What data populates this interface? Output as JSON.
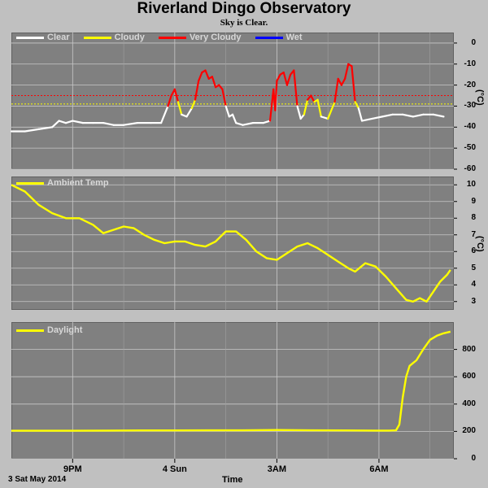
{
  "header": {
    "title": "Riverland Dingo Observatory",
    "subtitle": "Sky is Clear."
  },
  "footer": {
    "date": "3 Sat May 2014",
    "xlabel": "Time"
  },
  "colors": {
    "clear": "#ffffff",
    "cloudy": "#ffff00",
    "very_cloudy": "#ff0000",
    "wet": "#0000ff",
    "threshold_cloudy": "#ffff00",
    "threshold_very_cloudy": "#ff0000",
    "temp": "#ffff00",
    "daylight": "#ffff00"
  },
  "chart_data": [
    {
      "type": "line",
      "name": "sky",
      "unit": "(°C)",
      "ylim": [
        -60,
        5
      ],
      "yticks": [
        0,
        -10,
        -20,
        -30,
        -40,
        -50,
        -60
      ],
      "legend": [
        "Clear",
        "Cloudy",
        "Very Cloudy",
        "Wet"
      ],
      "thresholds": {
        "very_cloudy": -25,
        "cloudy": -29
      },
      "x_start": 19.2,
      "x_end": 7.9,
      "points": [
        [
          19.2,
          -42
        ],
        [
          19.6,
          -42
        ],
        [
          20.0,
          -41
        ],
        [
          20.4,
          -40
        ],
        [
          20.6,
          -37
        ],
        [
          20.8,
          -38
        ],
        [
          21.0,
          -37
        ],
        [
          21.3,
          -38
        ],
        [
          21.6,
          -38
        ],
        [
          21.9,
          -38
        ],
        [
          22.2,
          -39
        ],
        [
          22.5,
          -39
        ],
        [
          22.9,
          -38
        ],
        [
          23.3,
          -38
        ],
        [
          23.6,
          -38
        ],
        [
          23.8,
          -30
        ],
        [
          23.9,
          -25
        ],
        [
          24.0,
          -22
        ],
        [
          24.1,
          -28
        ],
        [
          24.2,
          -34
        ],
        [
          24.35,
          -35
        ],
        [
          24.5,
          -31
        ],
        [
          24.6,
          -27
        ],
        [
          24.7,
          -18
        ],
        [
          24.8,
          -14
        ],
        [
          24.9,
          -13
        ],
        [
          25.0,
          -17
        ],
        [
          25.1,
          -16
        ],
        [
          25.2,
          -21
        ],
        [
          25.3,
          -20
        ],
        [
          25.4,
          -22
        ],
        [
          25.5,
          -30
        ],
        [
          25.6,
          -35
        ],
        [
          25.7,
          -34
        ],
        [
          25.8,
          -38
        ],
        [
          26.0,
          -39
        ],
        [
          26.3,
          -38
        ],
        [
          26.6,
          -38
        ],
        [
          26.8,
          -37
        ],
        [
          26.9,
          -22
        ],
        [
          26.95,
          -32
        ],
        [
          27.0,
          -18
        ],
        [
          27.1,
          -15
        ],
        [
          27.2,
          -14
        ],
        [
          27.3,
          -20
        ],
        [
          27.4,
          -15
        ],
        [
          27.5,
          -13
        ],
        [
          27.6,
          -30
        ],
        [
          27.7,
          -36
        ],
        [
          27.8,
          -34
        ],
        [
          27.9,
          -27
        ],
        [
          28.0,
          -25
        ],
        [
          28.1,
          -28
        ],
        [
          28.2,
          -27
        ],
        [
          28.3,
          -35
        ],
        [
          28.5,
          -36
        ],
        [
          28.7,
          -28
        ],
        [
          28.8,
          -17
        ],
        [
          28.9,
          -20
        ],
        [
          29.0,
          -17
        ],
        [
          29.1,
          -10
        ],
        [
          29.2,
          -11
        ],
        [
          29.3,
          -28
        ],
        [
          29.4,
          -31
        ],
        [
          29.5,
          -37
        ],
        [
          29.8,
          -36
        ],
        [
          30.1,
          -35
        ],
        [
          30.4,
          -34
        ],
        [
          30.7,
          -34
        ],
        [
          31.0,
          -35
        ],
        [
          31.3,
          -34
        ],
        [
          31.6,
          -34
        ],
        [
          31.9,
          -35
        ]
      ]
    },
    {
      "type": "line",
      "name": "Ambient Temp",
      "unit": "(°C)",
      "ylim": [
        2.5,
        10.5
      ],
      "yticks": [
        10,
        9,
        8,
        7,
        6,
        5,
        4,
        3
      ],
      "points": [
        [
          19.2,
          10
        ],
        [
          19.6,
          9.6
        ],
        [
          20.0,
          8.8
        ],
        [
          20.4,
          8.3
        ],
        [
          20.8,
          8.0
        ],
        [
          21.2,
          8.0
        ],
        [
          21.6,
          7.6
        ],
        [
          21.9,
          7.1
        ],
        [
          22.2,
          7.3
        ],
        [
          22.5,
          7.5
        ],
        [
          22.8,
          7.4
        ],
        [
          23.1,
          7.0
        ],
        [
          23.4,
          6.7
        ],
        [
          23.7,
          6.5
        ],
        [
          24.0,
          6.6
        ],
        [
          24.3,
          6.6
        ],
        [
          24.6,
          6.4
        ],
        [
          24.9,
          6.3
        ],
        [
          25.2,
          6.6
        ],
        [
          25.5,
          7.2
        ],
        [
          25.8,
          7.2
        ],
        [
          26.1,
          6.7
        ],
        [
          26.4,
          6.0
        ],
        [
          26.7,
          5.6
        ],
        [
          27.0,
          5.5
        ],
        [
          27.3,
          5.9
        ],
        [
          27.6,
          6.3
        ],
        [
          27.9,
          6.5
        ],
        [
          28.2,
          6.2
        ],
        [
          28.5,
          5.8
        ],
        [
          28.8,
          5.4
        ],
        [
          29.1,
          5.0
        ],
        [
          29.3,
          4.8
        ],
        [
          29.6,
          5.3
        ],
        [
          29.9,
          5.1
        ],
        [
          30.2,
          4.5
        ],
        [
          30.5,
          3.8
        ],
        [
          30.8,
          3.1
        ],
        [
          31.0,
          3.0
        ],
        [
          31.2,
          3.2
        ],
        [
          31.4,
          3.0
        ],
        [
          31.6,
          3.6
        ],
        [
          31.8,
          4.2
        ],
        [
          32.0,
          4.6
        ],
        [
          32.1,
          4.9
        ]
      ]
    },
    {
      "type": "line",
      "name": "Daylight",
      "ylim": [
        0,
        1000
      ],
      "yticks": [
        800,
        600,
        400,
        200,
        0
      ],
      "points": [
        [
          19.2,
          205
        ],
        [
          20.0,
          205
        ],
        [
          21.0,
          205
        ],
        [
          22.0,
          206
        ],
        [
          23.0,
          207
        ],
        [
          24.0,
          207
        ],
        [
          25.0,
          208
        ],
        [
          26.0,
          208
        ],
        [
          27.0,
          210
        ],
        [
          28.0,
          208
        ],
        [
          29.0,
          207
        ],
        [
          29.9,
          206
        ],
        [
          30.3,
          206
        ],
        [
          30.5,
          208
        ],
        [
          30.6,
          250
        ],
        [
          30.7,
          450
        ],
        [
          30.8,
          600
        ],
        [
          30.9,
          680
        ],
        [
          31.1,
          720
        ],
        [
          31.3,
          800
        ],
        [
          31.5,
          870
        ],
        [
          31.7,
          900
        ],
        [
          31.9,
          918
        ],
        [
          32.1,
          930
        ]
      ]
    }
  ],
  "xaxis": {
    "ticks": [
      {
        "x": 21,
        "label": "9PM"
      },
      {
        "x": 24,
        "label": "4 Sun"
      },
      {
        "x": 27,
        "label": "3AM"
      },
      {
        "x": 30,
        "label": "6AM"
      }
    ]
  },
  "legend_temp": "Ambient Temp",
  "legend_daylight": "Daylight"
}
